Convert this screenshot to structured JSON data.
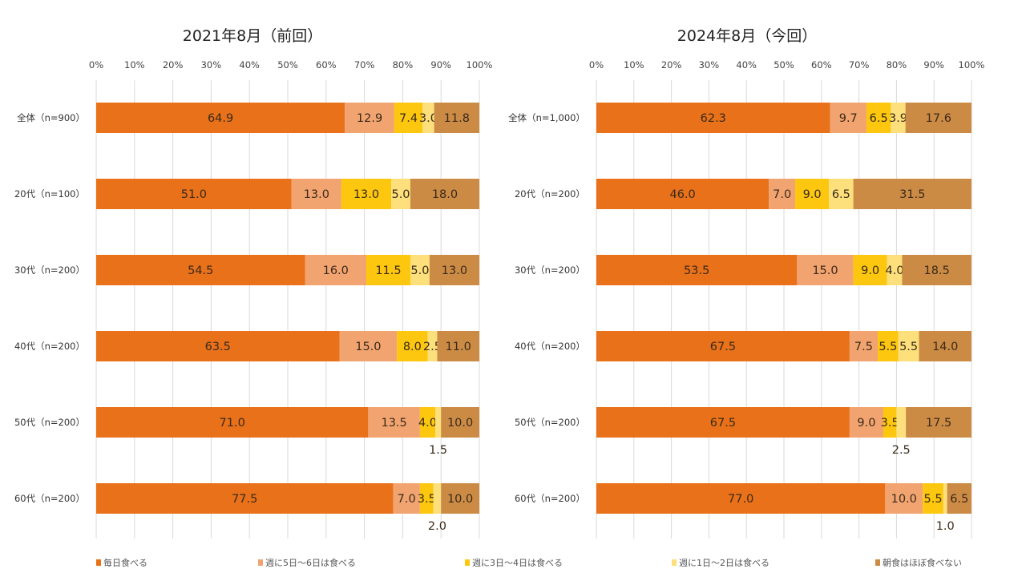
{
  "legend": [
    "毎日食べる",
    "週に5日～6日は食べる",
    "週に3日～4日は食べる",
    "週に1日～2日は食べる",
    "朝食はほぼ食べない"
  ],
  "colors": [
    "#E8711A",
    "#F2A470",
    "#FCC70E",
    "#FDE07C",
    "#CC8B45"
  ],
  "chart_data": [
    {
      "type": "bar",
      "orientation": "horizontal-stacked",
      "title": "2021年8月（前回）",
      "xlim": [
        0,
        100
      ],
      "xticks": [
        "0%",
        "10%",
        "20%",
        "30%",
        "40%",
        "50%",
        "60%",
        "70%",
        "80%",
        "90%",
        "100%"
      ],
      "grid": true,
      "legend_position": "bottom",
      "categories": [
        "全体（n=900）",
        "20代（n=100）",
        "30代（n=200）",
        "40代（n=200）",
        "50代（n=200）",
        "60代（n=200）"
      ],
      "series": [
        {
          "name": "毎日食べる",
          "values": [
            64.9,
            51.0,
            54.5,
            63.5,
            71.0,
            77.5
          ]
        },
        {
          "name": "週に5日～6日は食べる",
          "values": [
            12.9,
            13.0,
            16.0,
            15.0,
            13.5,
            7.0
          ]
        },
        {
          "name": "週に3日～4日は食べる",
          "values": [
            7.4,
            13.0,
            11.5,
            8.0,
            4.0,
            3.5
          ]
        },
        {
          "name": "週に1日～2日は食べる",
          "values": [
            3.0,
            5.0,
            5.0,
            2.5,
            1.5,
            2.0
          ]
        },
        {
          "name": "朝食はほぼ食べない",
          "values": [
            11.8,
            18.0,
            13.0,
            11.0,
            10.0,
            10.0
          ]
        }
      ]
    },
    {
      "type": "bar",
      "orientation": "horizontal-stacked",
      "title": "2024年8月（今回）",
      "xlim": [
        0,
        100
      ],
      "xticks": [
        "0%",
        "10%",
        "20%",
        "30%",
        "40%",
        "50%",
        "60%",
        "70%",
        "80%",
        "90%",
        "100%"
      ],
      "grid": true,
      "legend_position": "bottom",
      "categories": [
        "全体（n=1,000）",
        "20代（n=200）",
        "30代（n=200）",
        "40代（n=200）",
        "50代（n=200）",
        "60代（n=200）"
      ],
      "series": [
        {
          "name": "毎日食べる",
          "values": [
            62.3,
            46.0,
            53.5,
            67.5,
            67.5,
            77.0
          ]
        },
        {
          "name": "週に5日～6日は食べる",
          "values": [
            9.7,
            7.0,
            15.0,
            7.5,
            9.0,
            10.0
          ]
        },
        {
          "name": "週に3日～4日は食べる",
          "values": [
            6.5,
            9.0,
            9.0,
            5.5,
            3.5,
            5.5
          ]
        },
        {
          "name": "週に1日～2日は食べる",
          "values": [
            3.9,
            6.5,
            4.0,
            5.5,
            2.5,
            1.0
          ]
        },
        {
          "name": "朝食はほぼ食べない",
          "values": [
            17.6,
            31.5,
            18.5,
            14.0,
            17.5,
            6.5
          ]
        }
      ]
    }
  ]
}
